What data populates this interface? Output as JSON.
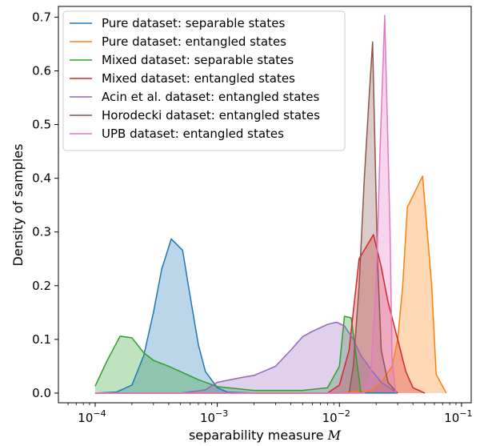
{
  "chart_data": {
    "type": "area",
    "xscale": "log",
    "xlim": [
      5e-05,
      0.12
    ],
    "ylim": [
      -0.018,
      0.72
    ],
    "xlabel": "separability measure M",
    "xlabel_text": "separability measure ",
    "xlabel_symbol": "M",
    "ylabel": "Density of samples",
    "x_ticks": [
      {
        "value": 0.0001,
        "base": "10",
        "exp": "−4"
      },
      {
        "value": 0.001,
        "base": "10",
        "exp": "−3"
      },
      {
        "value": 0.01,
        "base": "10",
        "exp": "−2"
      },
      {
        "value": 0.1,
        "base": "10",
        "exp": "−1"
      }
    ],
    "y_ticks": [
      "0.0",
      "0.1",
      "0.2",
      "0.3",
      "0.4",
      "0.5",
      "0.6",
      "0.7"
    ],
    "y_tick_values": [
      0.0,
      0.1,
      0.2,
      0.3,
      0.4,
      0.5,
      0.6,
      0.7
    ],
    "legend_position": "top-left",
    "grid": false,
    "series": [
      {
        "name": "Pure dataset: separable states",
        "color": "#1f77b4",
        "points": [
          [
            0.0001,
            0.0
          ],
          [
            0.00015,
            0.002
          ],
          [
            0.0002,
            0.015
          ],
          [
            0.00025,
            0.07
          ],
          [
            0.0003,
            0.15
          ],
          [
            0.00035,
            0.23
          ],
          [
            0.00042,
            0.287
          ],
          [
            0.00052,
            0.266
          ],
          [
            0.0006,
            0.18
          ],
          [
            0.0007,
            0.09
          ],
          [
            0.0008,
            0.04
          ],
          [
            0.001,
            0.01
          ],
          [
            0.0012,
            0.002
          ],
          [
            0.002,
            0.0
          ],
          [
            0.03,
            0.0
          ]
        ]
      },
      {
        "name": "Pure dataset: entangled states",
        "color": "#ff7f0e",
        "points": [
          [
            0.0001,
            0.0
          ],
          [
            0.01,
            0.0
          ],
          [
            0.018,
            0.005
          ],
          [
            0.022,
            0.02
          ],
          [
            0.027,
            0.05
          ],
          [
            0.03,
            0.1
          ],
          [
            0.033,
            0.2
          ],
          [
            0.036,
            0.346
          ],
          [
            0.048,
            0.404
          ],
          [
            0.057,
            0.2
          ],
          [
            0.062,
            0.035
          ],
          [
            0.075,
            0.0
          ]
        ]
      },
      {
        "name": "Mixed dataset: separable states",
        "color": "#2ca02c",
        "points": [
          [
            0.0001,
            0.013
          ],
          [
            0.000125,
            0.06
          ],
          [
            0.00016,
            0.106
          ],
          [
            0.0002,
            0.103
          ],
          [
            0.00025,
            0.075
          ],
          [
            0.0003,
            0.061
          ],
          [
            0.0004,
            0.05
          ],
          [
            0.0005,
            0.04
          ],
          [
            0.0007,
            0.025
          ],
          [
            0.001,
            0.012
          ],
          [
            0.002,
            0.005
          ],
          [
            0.005,
            0.005
          ],
          [
            0.008,
            0.01
          ],
          [
            0.01,
            0.05
          ],
          [
            0.011,
            0.143
          ],
          [
            0.0125,
            0.14
          ],
          [
            0.0135,
            0.08
          ],
          [
            0.015,
            0.0
          ]
        ]
      },
      {
        "name": "Mixed dataset: entangled states",
        "color": "#d62728",
        "points": [
          [
            0.0001,
            0.0
          ],
          [
            0.008,
            0.0
          ],
          [
            0.01,
            0.015
          ],
          [
            0.012,
            0.08
          ],
          [
            0.0145,
            0.25
          ],
          [
            0.019,
            0.295
          ],
          [
            0.022,
            0.235
          ],
          [
            0.025,
            0.17
          ],
          [
            0.03,
            0.1
          ],
          [
            0.035,
            0.04
          ],
          [
            0.04,
            0.01
          ],
          [
            0.05,
            0.0
          ]
        ]
      },
      {
        "name": "Acin et al. dataset: entangled states",
        "color": "#9467bd",
        "points": [
          [
            0.0001,
            0.0
          ],
          [
            0.0005,
            0.0
          ],
          [
            0.0008,
            0.006
          ],
          [
            0.001,
            0.02
          ],
          [
            0.0015,
            0.028
          ],
          [
            0.002,
            0.033
          ],
          [
            0.003,
            0.05
          ],
          [
            0.004,
            0.08
          ],
          [
            0.005,
            0.105
          ],
          [
            0.006,
            0.115
          ],
          [
            0.008,
            0.128
          ],
          [
            0.0095,
            0.132
          ],
          [
            0.011,
            0.125
          ],
          [
            0.013,
            0.1
          ],
          [
            0.015,
            0.07
          ],
          [
            0.018,
            0.045
          ],
          [
            0.022,
            0.02
          ],
          [
            0.03,
            0.0
          ]
        ]
      },
      {
        "name": "Horodecki dataset: entangled states",
        "color": "#8c564b",
        "points": [
          [
            0.0001,
            0.0
          ],
          [
            0.012,
            0.0
          ],
          [
            0.013,
            0.05
          ],
          [
            0.0145,
            0.2
          ],
          [
            0.016,
            0.4
          ],
          [
            0.0175,
            0.55
          ],
          [
            0.0187,
            0.654
          ],
          [
            0.0205,
            0.25
          ],
          [
            0.022,
            0.08
          ],
          [
            0.025,
            0.02
          ],
          [
            0.03,
            0.0
          ]
        ]
      },
      {
        "name": "UPB dataset: entangled states",
        "color": "#e377c2",
        "points": [
          [
            0.0001,
            0.0
          ],
          [
            0.016,
            0.0
          ],
          [
            0.018,
            0.03
          ],
          [
            0.02,
            0.2
          ],
          [
            0.0215,
            0.45
          ],
          [
            0.0235,
            0.703
          ],
          [
            0.026,
            0.3
          ],
          [
            0.027,
            0.06
          ],
          [
            0.029,
            0.0
          ]
        ]
      }
    ]
  }
}
